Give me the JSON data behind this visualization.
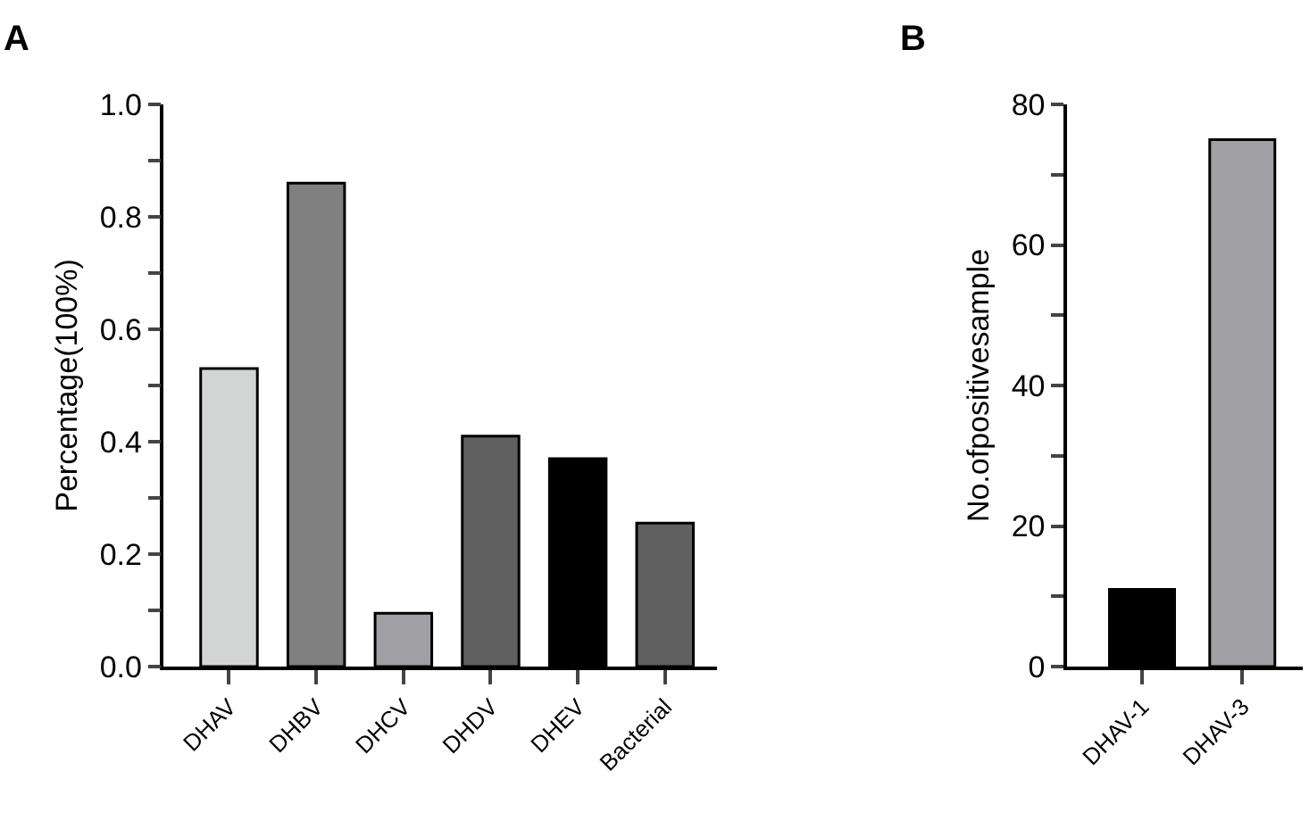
{
  "chart_data": [
    {
      "type": "bar",
      "title": "A",
      "ylabel": "Percentage(100%)",
      "categories": [
        "DHAV",
        "DHBV",
        "DHCV",
        "DHDV",
        "DHEV",
        "Bacterial"
      ],
      "values": [
        0.53,
        0.86,
        0.095,
        0.41,
        0.37,
        0.255
      ],
      "colors": [
        "#d3d5d5",
        "#808080",
        "#a0a0a4",
        "#606060",
        "#000000",
        "#606060"
      ],
      "ylim": [
        0,
        1.0
      ],
      "yticks": [
        {
          "value": 0,
          "label": "0.0"
        },
        {
          "value": 0.1,
          "label": null
        },
        {
          "value": 0.2,
          "label": "0.2"
        },
        {
          "value": 0.3,
          "label": null
        },
        {
          "value": 0.4,
          "label": "0.4"
        },
        {
          "value": 0.5,
          "label": null
        },
        {
          "value": 0.6,
          "label": "0.6"
        },
        {
          "value": 0.7,
          "label": null
        },
        {
          "value": 0.8,
          "label": "0.8"
        },
        {
          "value": 0.9,
          "label": null
        },
        {
          "value": 1.0,
          "label": "1.0"
        }
      ]
    },
    {
      "type": "bar",
      "title": "B",
      "ylabel": "No.ofpositivesample",
      "categories": [
        "DHAV-1",
        "DHAV-3"
      ],
      "values": [
        11,
        75
      ],
      "colors": [
        "#000000",
        "#a0a0a4"
      ],
      "ylim": [
        0,
        80
      ],
      "yticks": [
        0,
        {
          "value": 10,
          "label": null
        },
        20,
        {
          "value": 30,
          "label": null
        },
        40,
        {
          "value": 50,
          "label": null
        },
        60,
        {
          "value": 70,
          "label": null
        },
        80
      ]
    }
  ]
}
